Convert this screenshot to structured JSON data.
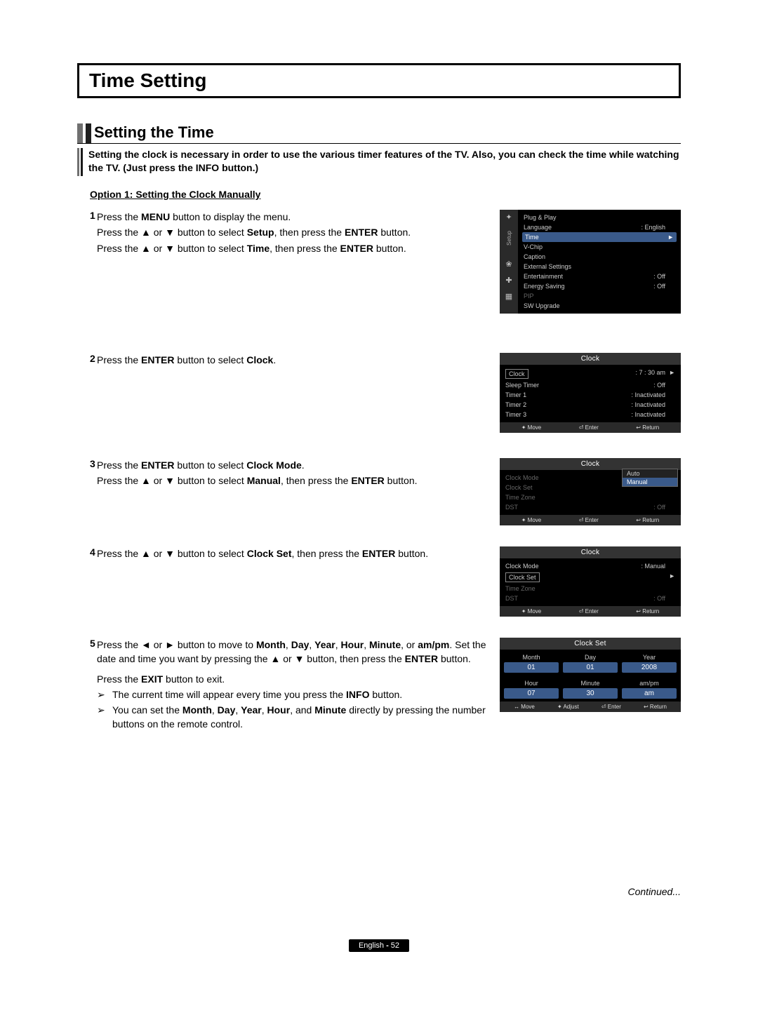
{
  "page": {
    "title": "Time Setting",
    "subtitle": "Setting the Time",
    "intro": "Setting the clock is necessary in order to use the various timer features of the TV. Also, you can check the time while watching the TV. (Just press the INFO button.)",
    "option1": "Option 1: Setting the Clock Manually",
    "continued": "Continued...",
    "footer_lang": "English",
    "footer_page": "52"
  },
  "steps": {
    "s1": {
      "num": "1",
      "l1a": "Press the ",
      "l1b": "MENU",
      "l1c": " button to display the menu.",
      "l2a": "Press the ▲ or ▼ button to select ",
      "l2b": "Setup",
      "l2c": ", then press the ",
      "l2d": "ENTER",
      "l2e": " button.",
      "l3a": "Press the ▲ or ▼ button to select ",
      "l3b": "Time",
      "l3c": ", then press the ",
      "l3d": "ENTER",
      "l3e": " button."
    },
    "s2": {
      "num": "2",
      "l1a": "Press the ",
      "l1b": "ENTER",
      "l1c": " button to select ",
      "l1d": "Clock",
      "l1e": "."
    },
    "s3": {
      "num": "3",
      "l1a": "Press the ",
      "l1b": "ENTER",
      "l1c": " button to select ",
      "l1d": "Clock Mode",
      "l1e": ".",
      "l2a": "Press the ▲ or ▼ button to select ",
      "l2b": "Manual",
      "l2c": ", then press the ",
      "l2d": "ENTER",
      "l2e": " button."
    },
    "s4": {
      "num": "4",
      "l1a": "Press the ▲ or ▼ button to select ",
      "l1b": "Clock Set",
      "l1c": ", then press the ",
      "l1d": "ENTER",
      "l1e": " button."
    },
    "s5": {
      "num": "5",
      "l1a": "Press the ◄ or ► button to move to ",
      "l1b": "Month",
      "l1c": ", ",
      "l1d": "Day",
      "l1e": ", ",
      "l1f": "Year",
      "l1g": ", ",
      "l1h": "Hour",
      "l1i": ", ",
      "l1j": "Minute",
      "l1k": ", or ",
      "l1l": "am/pm",
      "l1m": ". Set the date and time you want by pressing the ▲ or ▼ button, then press the ",
      "l1n": "ENTER",
      "l1o": " button.",
      "l2a": "Press the ",
      "l2b": "EXIT",
      "l2c": " button to exit.",
      "n1a": "The current time will appear every time you press the ",
      "n1b": "INFO",
      "n1c": " button.",
      "n2a": "You can set the ",
      "n2b": "Month",
      "n2c": ", ",
      "n2d": "Day",
      "n2e": ", ",
      "n2f": "Year",
      "n2g": ", ",
      "n2h": "Hour",
      "n2i": ", and ",
      "n2j": "Minute",
      "n2k": " directly by pressing the number buttons on the remote control."
    }
  },
  "osd": {
    "setup": {
      "side_label": "Setup",
      "icons": [
        "✦",
        "❀",
        "✚",
        "▦"
      ],
      "items": [
        {
          "label": "Plug & Play",
          "value": ""
        },
        {
          "label": "Language",
          "value": ": English"
        },
        {
          "label": "Time",
          "value": "",
          "hl": true,
          "arrow": "►"
        },
        {
          "label": "V-Chip",
          "value": ""
        },
        {
          "label": "Caption",
          "value": ""
        },
        {
          "label": "External Settings",
          "value": ""
        },
        {
          "label": "Entertainment",
          "value": ": Off"
        },
        {
          "label": "Energy Saving",
          "value": ": Off"
        },
        {
          "label": "PIP",
          "value": "",
          "dim": true
        },
        {
          "label": "SW Upgrade",
          "value": ""
        }
      ]
    },
    "clock1": {
      "title": "Clock",
      "rows": [
        {
          "label": "Clock",
          "value": ": 7 : 30 am",
          "box": true,
          "arrow": "►"
        },
        {
          "label": "Sleep Timer",
          "value": ": Off"
        },
        {
          "label": "Timer 1",
          "value": ": Inactivated"
        },
        {
          "label": "Timer 2",
          "value": ": Inactivated"
        },
        {
          "label": "Timer 3",
          "value": ": Inactivated"
        }
      ],
      "foot": [
        "✦ Move",
        "⏎ Enter",
        "↩ Return"
      ]
    },
    "clock2": {
      "title": "Clock",
      "rows": [
        {
          "label": "Clock Mode",
          "value": "",
          "dim": true
        },
        {
          "label": "Clock Set",
          "value": "",
          "dim": true
        },
        {
          "label": "Time Zone",
          "value": "",
          "dim": true
        },
        {
          "label": "DST",
          "value": ": Off",
          "dim": true
        }
      ],
      "dropdown": {
        "options": [
          "Auto",
          "Manual"
        ],
        "sel": 1
      },
      "foot": [
        "✦ Move",
        "⏎ Enter",
        "↩ Return"
      ]
    },
    "clock3": {
      "title": "Clock",
      "rows": [
        {
          "label": "Clock Mode",
          "value": ": Manual"
        },
        {
          "label": "Clock Set",
          "value": "",
          "box": true,
          "arrow": "►"
        },
        {
          "label": "Time Zone",
          "value": "",
          "dim": true
        },
        {
          "label": "DST",
          "value": ": Off",
          "dim": true
        }
      ],
      "foot": [
        "✦ Move",
        "⏎ Enter",
        "↩ Return"
      ]
    },
    "clockset": {
      "title": "Clock Set",
      "cols1": [
        {
          "lab": "Month",
          "val": "01",
          "hl": true
        },
        {
          "lab": "Day",
          "val": "01",
          "hl": true
        },
        {
          "lab": "Year",
          "val": "2008",
          "hl": true
        }
      ],
      "cols2": [
        {
          "lab": "Hour",
          "val": "07",
          "hl": true
        },
        {
          "lab": "Minute",
          "val": "30",
          "hl": true
        },
        {
          "lab": "am/pm",
          "val": "am",
          "hl": true
        }
      ],
      "foot": [
        "↔ Move",
        "✦ Adjust",
        "⏎ Enter",
        "↩ Return"
      ]
    }
  }
}
